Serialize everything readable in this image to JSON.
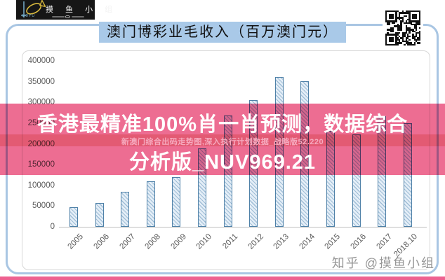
{
  "brand": {
    "name": "摸 鱼 小 组",
    "sub": "MOYU"
  },
  "header": {
    "title": "澳门博彩业毛收入（百万澳门元）",
    "highlight_color": "#a9c9e8"
  },
  "banner": {
    "line1": "香港最精准100%肖一肖预测，数据综合",
    "line2": "分析版_NUV969.21",
    "watermark": "新澳门综合出码走势图,深入执行计划数据_战略版52.220",
    "bg_color": "#ed6d92",
    "strip_color": "#e35a73",
    "text_color": "#ffffff"
  },
  "footer": {
    "credit": "知乎 @摸鱼小组",
    "strip_color": "#ee6190"
  },
  "chart_data": {
    "type": "bar",
    "title": "澳门博彩业毛收入（百万澳门元）",
    "categories": [
      "2005",
      "2006",
      "2007",
      "2008",
      "2009",
      "2010",
      "2011",
      "2012",
      "2013",
      "2014",
      "2015",
      "2016",
      "2017",
      "2018.10"
    ],
    "values": [
      47134,
      57521,
      83847,
      109826,
      120383,
      189588,
      269058,
      305235,
      361866,
      351521,
      231811,
      223210,
      266743,
      250400
    ],
    "xlabel": "",
    "ylabel": "",
    "ylim": [
      0,
      400000
    ],
    "ytick_step": 50000,
    "grid": false,
    "legend": false,
    "bar_fill": "#e4eef7",
    "bar_hatch_color": "#9fbdd6",
    "bar_border": "#4f81a8",
    "axis_label_color": "#595959"
  }
}
